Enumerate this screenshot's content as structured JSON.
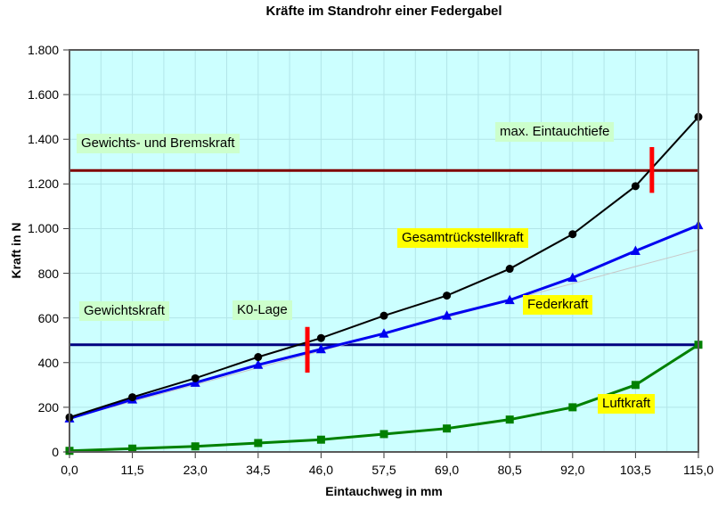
{
  "title": "Kräfte im Standrohr einer Federgabel",
  "chart_data": {
    "type": "line",
    "title": "Kräfte im Standrohr einer Federgabel",
    "xlabel": "Eintauchweg in mm",
    "ylabel": "Kraft in N",
    "xlim": [
      0,
      115
    ],
    "ylim": [
      0,
      1800
    ],
    "grid": {
      "enabled": true,
      "x_minor_step": 5.75,
      "y_step": 200,
      "color": "#B2E5E8"
    },
    "plot_bg": "#CCFFFF",
    "plot_border_color": "#5A5A5A",
    "x": [
      0,
      11.5,
      23.0,
      34.5,
      46.0,
      57.5,
      69.0,
      80.5,
      92.0,
      103.5,
      115.0
    ],
    "x_tick_labels": [
      "0,0",
      "11,5",
      "23,0",
      "34,5",
      "46,0",
      "57,5",
      "69,0",
      "80,5",
      "92,0",
      "103,5",
      "115,0"
    ],
    "y_ticks": [
      0,
      200,
      400,
      600,
      800,
      1000,
      1200,
      1400,
      1600,
      1800
    ],
    "y_tick_labels": [
      "0",
      "200",
      "400",
      "600",
      "800",
      "1.000",
      "1.200",
      "1.400",
      "1.600",
      "1.800"
    ],
    "series": [
      {
        "name": "Linear-Kennlinie (schwach)",
        "color": "#C8C8C8",
        "width": 1,
        "marker": "none",
        "values": [
          150,
          226,
          301,
          377,
          452,
          528,
          603,
          679,
          754,
          830,
          905
        ]
      },
      {
        "name": "Luftkraft",
        "color": "#008000",
        "width": 3,
        "marker": "square",
        "values": [
          5,
          15,
          25,
          40,
          55,
          80,
          105,
          145,
          200,
          300,
          480
        ]
      },
      {
        "name": "Federkraft",
        "color": "#0000F0",
        "width": 3,
        "marker": "triangle",
        "values": [
          150,
          235,
          310,
          390,
          460,
          530,
          610,
          680,
          780,
          900,
          1015
        ]
      },
      {
        "name": "Gesamtrückstellkraft",
        "color": "#000000",
        "width": 2,
        "marker": "circle",
        "values": [
          155,
          245,
          330,
          425,
          510,
          610,
          700,
          820,
          975,
          1190,
          1500
        ]
      }
    ],
    "reference_lines": [
      {
        "name": "Gewichtskraft",
        "value": 480,
        "color": "#000080",
        "width": 3
      },
      {
        "name": "Gewichts- und Bremskraft",
        "value": 1260,
        "color": "#800000",
        "width": 3
      }
    ],
    "vertical_markers": [
      {
        "name": "K0-Lage",
        "x": 43.5,
        "y_from": 355,
        "y_to": 560,
        "color": "#FF0000",
        "width": 5
      },
      {
        "name": "max. Eintauchtiefe",
        "x": 106.5,
        "y_from": 1160,
        "y_to": 1365,
        "color": "#FF0000",
        "width": 5
      }
    ],
    "annotations": [
      {
        "text": "Gewichts- und Bremskraft",
        "bg": "#CCFFCC"
      },
      {
        "text": "max. Eintauchtiefe",
        "bg": "#CCFFCC"
      },
      {
        "text": "Gesamtrückstellkraft",
        "bg": "#FFFF00"
      },
      {
        "text": "Federkraft",
        "bg": "#FFFF00"
      },
      {
        "text": "Gewichtskraft",
        "bg": "#CCFFCC"
      },
      {
        "text": "K0-Lage",
        "bg": "#CCFFCC"
      },
      {
        "text": "Luftkraft",
        "bg": "#FFFF00"
      }
    ]
  }
}
